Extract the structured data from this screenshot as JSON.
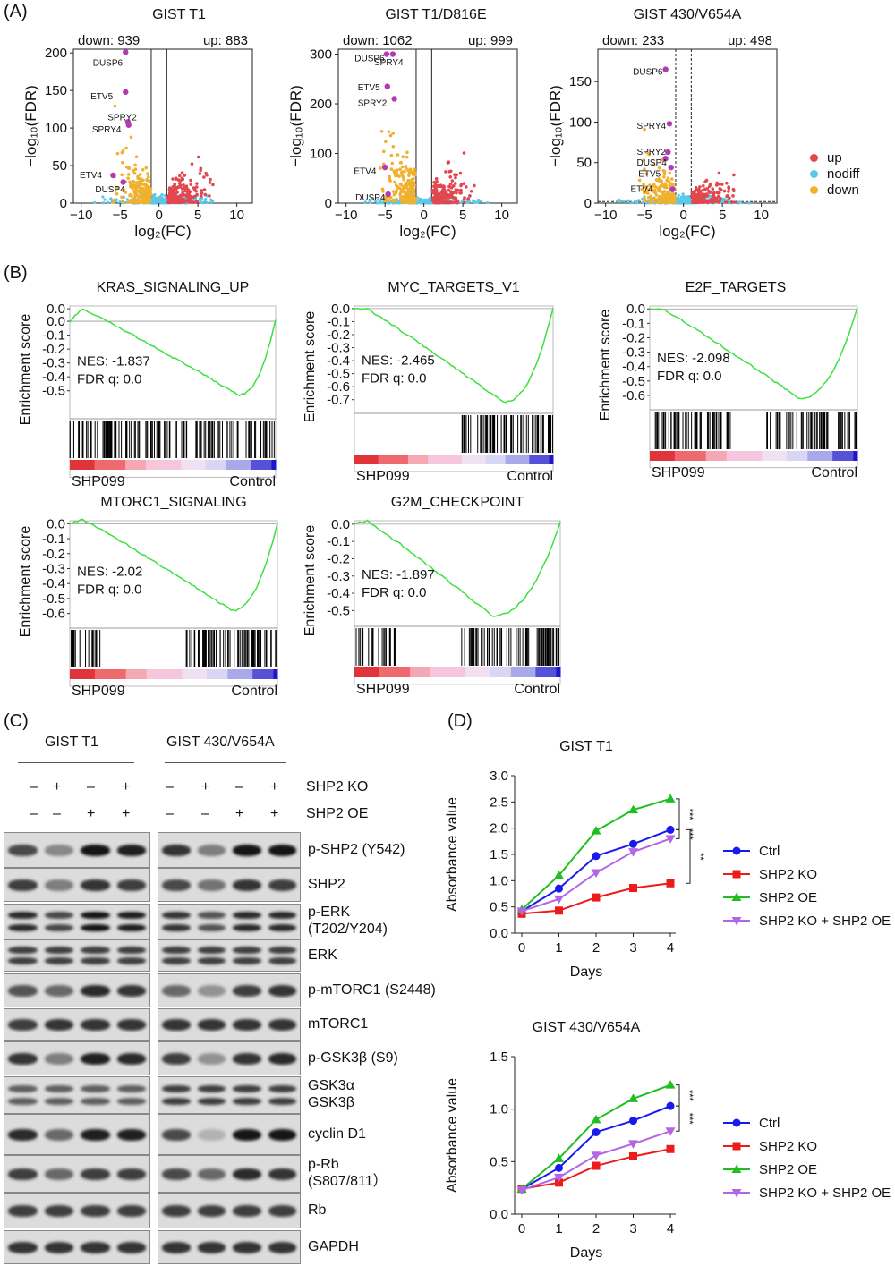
{
  "panels": {
    "A": "(A)",
    "B": "(B)",
    "C": "(C)",
    "D": "(D)"
  },
  "volcano": {
    "legend": {
      "up": "up",
      "nodiff": "nodiff",
      "down": "down"
    },
    "colors": {
      "up": "#e2474f",
      "nodiff": "#5cc7e6",
      "down": "#f0b030",
      "gene": "#b33ab5"
    },
    "plots": [
      {
        "title": "GIST T1",
        "down": "down: 939",
        "up": "up: 883",
        "xlabel": "log₂(FC)",
        "ylabel": "−log₁₀(FDR)",
        "yticks": [
          "0",
          "50",
          "100",
          "150",
          "200"
        ],
        "xticks": [
          "−10",
          "−5",
          "0",
          "5",
          "10"
        ],
        "genes": [
          "DUSP6",
          "ETV5",
          "SPRY2",
          "SPRY4",
          "ETV4",
          "DUSP4"
        ]
      },
      {
        "title": "GIST T1/D816E",
        "down": "down: 1062",
        "up": "up: 999",
        "xlabel": "log₂(FC)",
        "ylabel": "−log₁₀(FDR)",
        "yticks": [
          "0",
          "100",
          "200",
          "300"
        ],
        "xticks": [
          "−10",
          "−5",
          "0",
          "5",
          "10"
        ],
        "genes": [
          "DUSP6",
          "SPRY4",
          "ETV5",
          "SPRY2",
          "ETV4",
          "DUSP4"
        ]
      },
      {
        "title": "GIST 430/V654A",
        "down": "down: 233",
        "up": "up: 498",
        "xlabel": "log₂(FC)",
        "ylabel": "−log₁₀(FDR)",
        "yticks": [
          "0",
          "50",
          "100",
          "150"
        ],
        "xticks": [
          "−10",
          "−5",
          "0",
          "5",
          "10"
        ],
        "genes": [
          "DUSP6",
          "SPRY4",
          "SPRY2",
          "DUSP4",
          "ETV5",
          "ETV4"
        ]
      }
    ]
  },
  "gsea": {
    "ylabel": "Enrichment score",
    "left": "SHP099",
    "right": "Control",
    "nes_prefix": "NES: ",
    "fdr": "FDR q: 0.0",
    "plots": [
      {
        "title": "KRAS_SIGNALING_UP",
        "nes": "NES: -1.837",
        "yticks": [
          "0.0",
          "0.0",
          "-0.1",
          "-0.2",
          "-0.3",
          "-0.4",
          "-0.5"
        ]
      },
      {
        "title": "MYC_TARGETS_V1",
        "nes": "NES: -2.465",
        "yticks": [
          "0.0",
          "-0.1",
          "-0.2",
          "-0.3",
          "-0.4",
          "-0.5",
          "-0.6",
          "-0.7"
        ]
      },
      {
        "title": "E2F_TARGETS",
        "nes": "NES: -2.098",
        "yticks": [
          "0.0",
          "-0.1",
          "-0.2",
          "-0.3",
          "-0.4",
          "-0.5",
          "-0.6"
        ]
      },
      {
        "title": "MTORC1_SIGNALING",
        "nes": "NES: -2.02",
        "yticks": [
          "0.0",
          "-0.1",
          "-0.2",
          "-0.3",
          "-0.4",
          "-0.5",
          "-0.6"
        ]
      },
      {
        "title": "G2M_CHECKPOINT",
        "nes": "NES: -1.897",
        "yticks": [
          "0.0",
          "-0.1",
          "-0.2",
          "-0.3",
          "-0.4",
          "-0.5"
        ]
      }
    ]
  },
  "blot": {
    "groups": [
      "GIST T1",
      "GIST 430/V654A"
    ],
    "rows": [
      {
        "label": "SHP2 KO",
        "signs": [
          "–",
          "+",
          "–",
          "+"
        ]
      },
      {
        "label": "SHP2 OE",
        "signs": [
          "–",
          "–",
          "+",
          "+"
        ]
      }
    ],
    "bands": [
      "p-SHP2 (Y542)",
      "SHP2",
      "p-ERK\n(T202/Y204)",
      "ERK",
      "p-mTORC1 (S2448)",
      "mTORC1",
      "p-GSK3β (S9)",
      "GSK3α\nGSK3β",
      "cyclin D1",
      "p-Rb\n(S807/811）",
      "Rb",
      "GAPDH"
    ]
  },
  "chart_data": [
    {
      "type": "line",
      "title": "GIST T1",
      "xlabel": "Days",
      "ylabel": "Absorbance value",
      "x": [
        0,
        1,
        2,
        3,
        4
      ],
      "ylim": [
        0,
        3.0
      ],
      "yticks": [
        "0.0",
        "0.5",
        "1.0",
        "1.5",
        "2.0",
        "2.5",
        "3.0"
      ],
      "series": [
        {
          "name": "Ctrl",
          "color": "#1a1aee",
          "marker": "circle",
          "values": [
            0.42,
            0.85,
            1.47,
            1.7,
            1.97
          ]
        },
        {
          "name": "SHP2 KO",
          "color": "#ee1b1b",
          "marker": "square",
          "values": [
            0.37,
            0.43,
            0.68,
            0.86,
            0.95
          ]
        },
        {
          "name": "SHP2 OE",
          "color": "#1fbf1f",
          "marker": "triangle-up",
          "values": [
            0.45,
            1.1,
            1.95,
            2.35,
            2.56
          ]
        },
        {
          "name": "SHP2 KO + SHP2 OE",
          "color": "#b266e6",
          "marker": "triangle-down",
          "values": [
            0.42,
            0.65,
            1.15,
            1.55,
            1.8
          ]
        }
      ],
      "significance": [
        "***",
        "***",
        "**"
      ]
    },
    {
      "type": "line",
      "title": "GIST 430/V654A",
      "xlabel": "Days",
      "ylabel": "Absorbance value",
      "x": [
        0,
        1,
        2,
        3,
        4
      ],
      "ylim": [
        0,
        1.5
      ],
      "yticks": [
        "0.0",
        "0.5",
        "1.0",
        "1.5"
      ],
      "series": [
        {
          "name": "Ctrl",
          "color": "#1a1aee",
          "marker": "circle",
          "values": [
            0.24,
            0.44,
            0.78,
            0.89,
            1.03
          ]
        },
        {
          "name": "SHP2 KO",
          "color": "#ee1b1b",
          "marker": "square",
          "values": [
            0.24,
            0.3,
            0.46,
            0.55,
            0.62
          ]
        },
        {
          "name": "SHP2 OE",
          "color": "#1fbf1f",
          "marker": "triangle-up",
          "values": [
            0.24,
            0.53,
            0.9,
            1.1,
            1.23
          ]
        },
        {
          "name": "SHP2 KO + SHP2 OE",
          "color": "#b266e6",
          "marker": "triangle-down",
          "values": [
            0.23,
            0.35,
            0.56,
            0.67,
            0.79
          ]
        }
      ],
      "significance": [
        "***",
        "***"
      ]
    }
  ]
}
